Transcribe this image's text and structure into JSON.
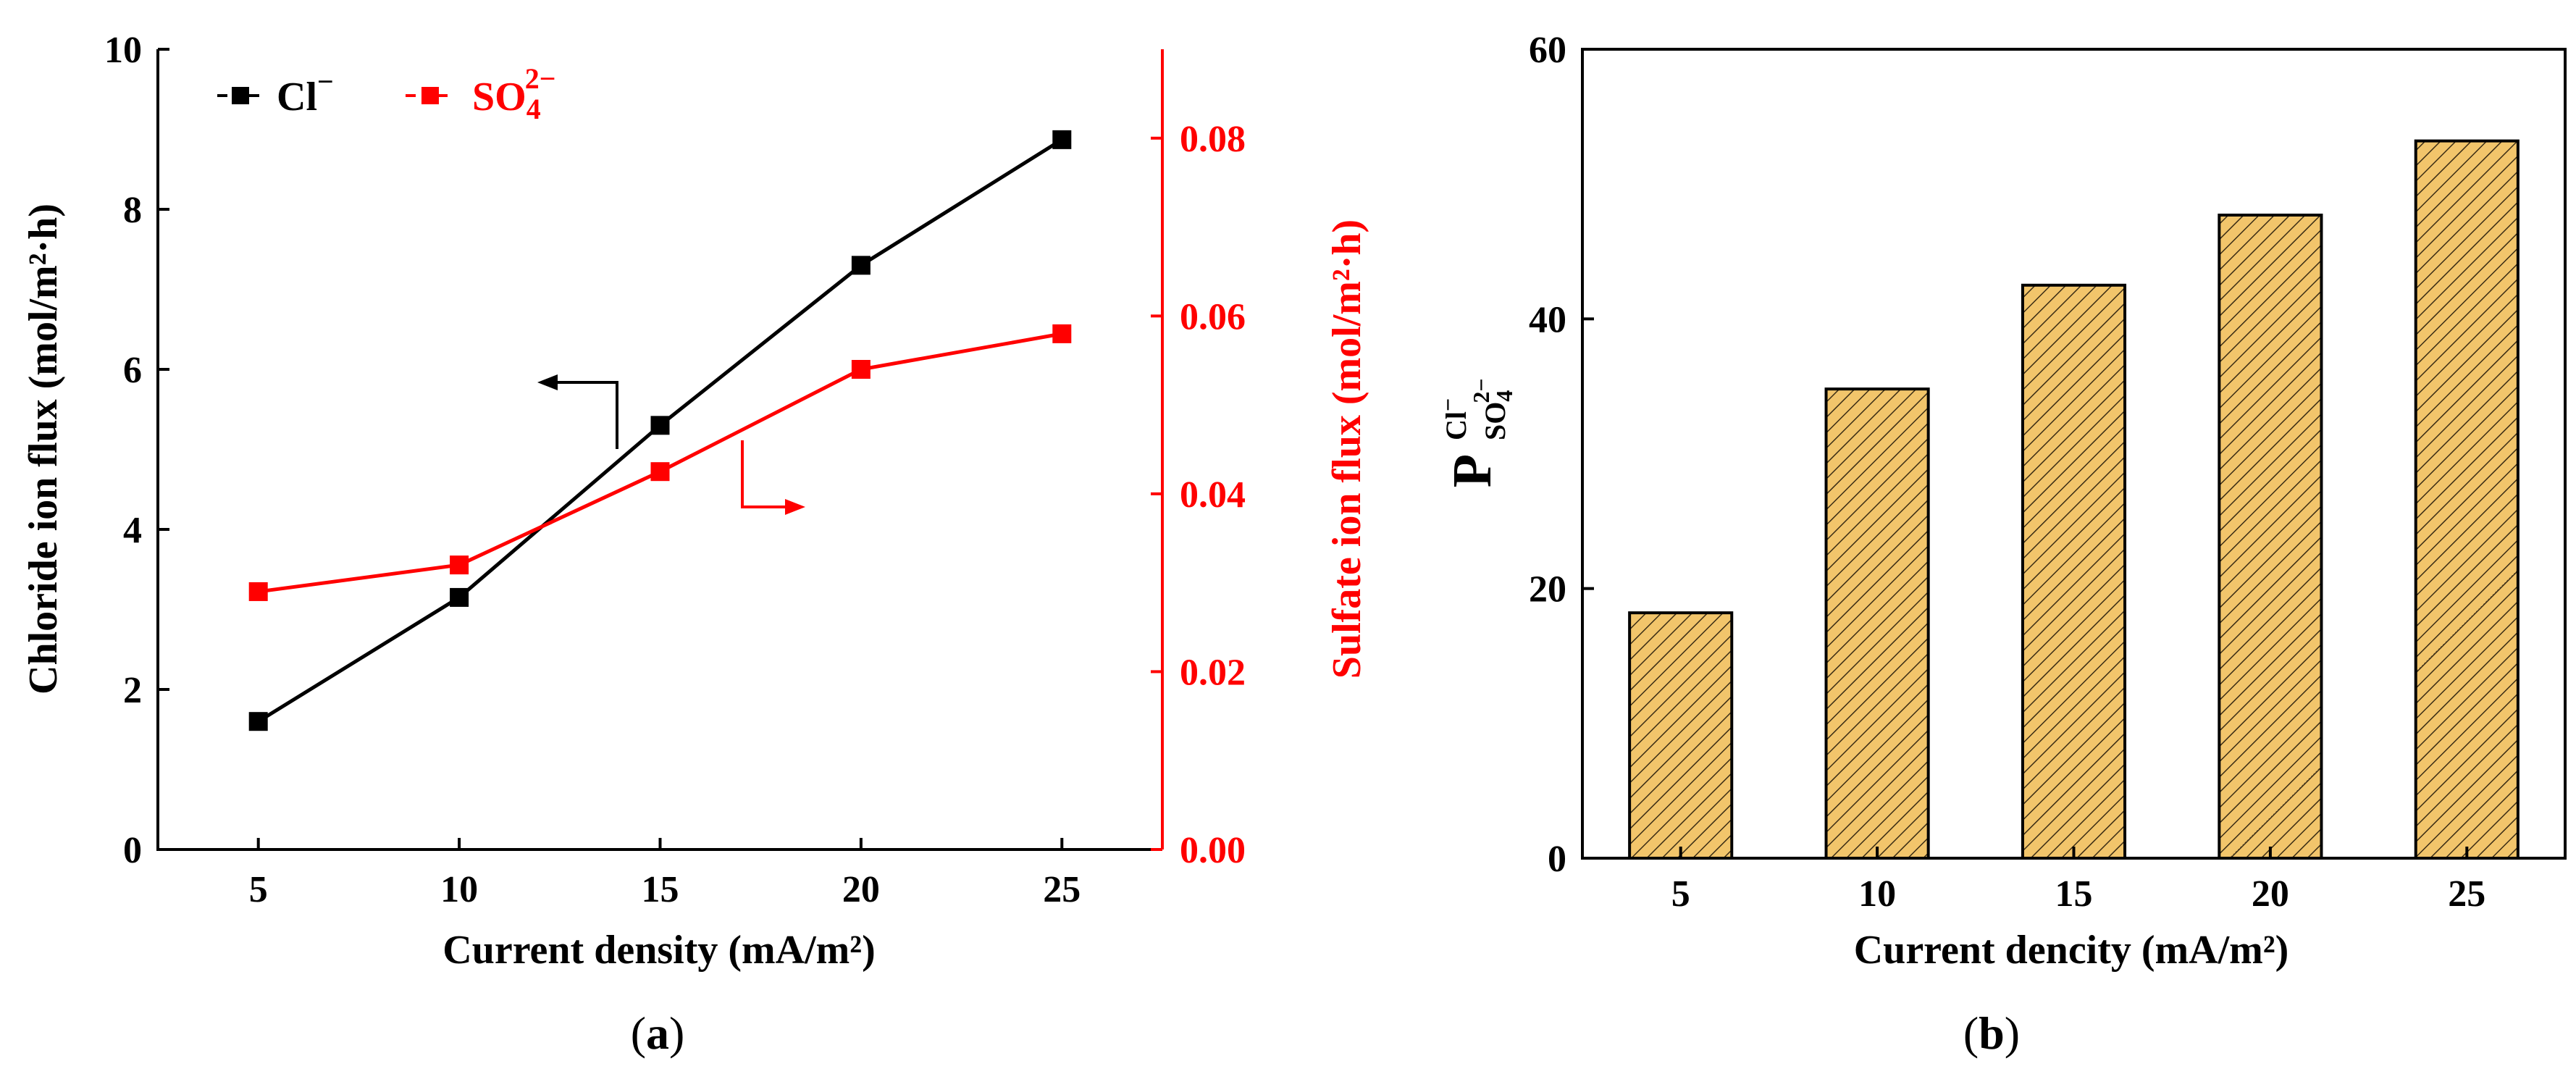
{
  "chart_data": [
    {
      "panel": "a",
      "type": "line",
      "caption_open": "(",
      "caption_letter": "a",
      "caption_close": ")",
      "xlabel": "Current density (mA/m²)",
      "ylabel_left": "Chloride ion flux (mol/m²·h)",
      "ylabel_right": "Sulfate ion flux (mol/m²·h)",
      "x": [
        5,
        10,
        15,
        20,
        25
      ],
      "x_tick_labels": [
        "5",
        "10",
        "15",
        "20",
        "25"
      ],
      "xlim": [
        2.5,
        27.5
      ],
      "ylim_left": [
        0,
        10
      ],
      "left_ticks": [
        0,
        2,
        4,
        6,
        8,
        10
      ],
      "left_tick_labels": [
        "0",
        "2",
        "4",
        "6",
        "8",
        "10"
      ],
      "ylim_right": [
        0,
        0.09
      ],
      "right_ticks": [
        0,
        0.02,
        0.04,
        0.06,
        0.08
      ],
      "right_tick_labels": [
        "0.00",
        "0.02",
        "0.04",
        "0.06",
        "0.08"
      ],
      "series": [
        {
          "name": "Cl",
          "label_base": "Cl",
          "label_sup": "−",
          "axis": "left",
          "color": "#000000",
          "values": [
            1.6,
            3.15,
            5.3,
            7.3,
            8.87
          ]
        },
        {
          "name": "SO4 2−",
          "label_base": "SO",
          "label_sub": "4",
          "label_sup": "2−",
          "axis": "right",
          "color": "#ff0000",
          "values": [
            0.029,
            0.032,
            0.0425,
            0.054,
            0.058
          ]
        }
      ],
      "legend_position": "top-left",
      "annotations": [
        "left-pointing arrow near Cl⁻ line",
        "right-pointing arrow near SO₄²⁻ line"
      ]
    },
    {
      "panel": "b",
      "type": "bar",
      "caption_open": "(",
      "caption_letter": "b",
      "caption_close": ")",
      "xlabel": "Current dencity (mA/m²)",
      "ylabel_main": "P",
      "ylabel_sup": "Cl",
      "ylabel_sup_sign": "−",
      "ylabel_sub": "SO",
      "ylabel_sub_index": "4",
      "ylabel_sub_charge": "2−",
      "categories": [
        "5",
        "10",
        "15",
        "20",
        "25"
      ],
      "values": [
        18.2,
        34.8,
        42.5,
        47.7,
        53.2
      ],
      "ylim": [
        0,
        60
      ],
      "y_ticks": [
        0,
        20,
        40,
        60
      ],
      "y_tick_labels": [
        "0",
        "20",
        "40",
        "60"
      ],
      "bar_color": "#f2c56b",
      "hatch": "diagonal"
    }
  ]
}
